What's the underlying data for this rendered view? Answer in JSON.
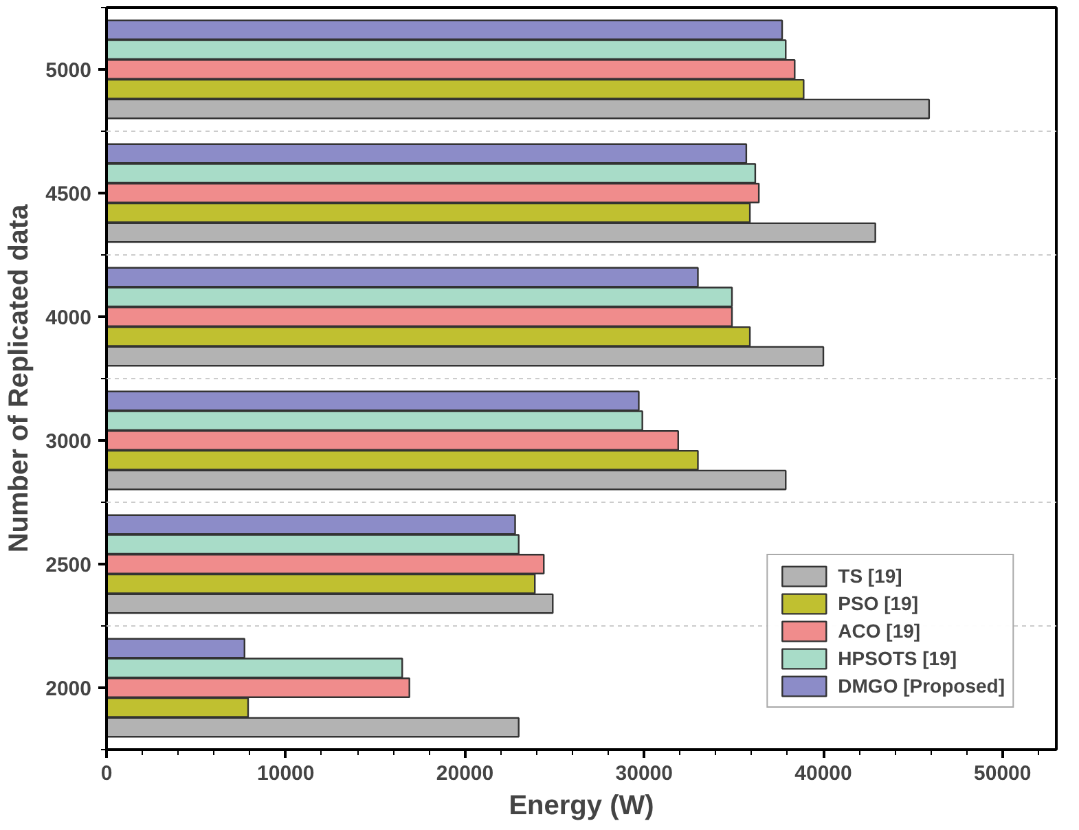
{
  "chart_data": {
    "type": "bar",
    "orientation": "horizontal",
    "xlabel": "Energy (W)",
    "ylabel": "Number of Replicated data",
    "categories": [
      "5000",
      "4500",
      "4000",
      "3000",
      "2500",
      "2000"
    ],
    "series": [
      {
        "name": "TS [19]",
        "color": "#b3b3b3",
        "values": [
          45900,
          42900,
          40000,
          37900,
          24900,
          23000
        ]
      },
      {
        "name": "PSO [19]",
        "color": "#c0c030",
        "values": [
          38900,
          35900,
          35900,
          33000,
          23900,
          7900
        ]
      },
      {
        "name": "ACO [19]",
        "color": "#f08c8c",
        "values": [
          38400,
          36400,
          34900,
          31900,
          24400,
          16900
        ]
      },
      {
        "name": "HPSOTS [19]",
        "color": "#a8dcc8",
        "values": [
          37900,
          36200,
          34900,
          29900,
          23000,
          16500
        ]
      },
      {
        "name": "DMGO [Proposed]",
        "color": "#8c8cc8",
        "values": [
          37700,
          35700,
          33000,
          29700,
          22800,
          7700
        ]
      }
    ],
    "xlim": [
      0,
      53000
    ],
    "xticks": [
      0,
      10000,
      20000,
      30000,
      40000,
      50000
    ],
    "grid": "y",
    "legend": "bottom right"
  }
}
